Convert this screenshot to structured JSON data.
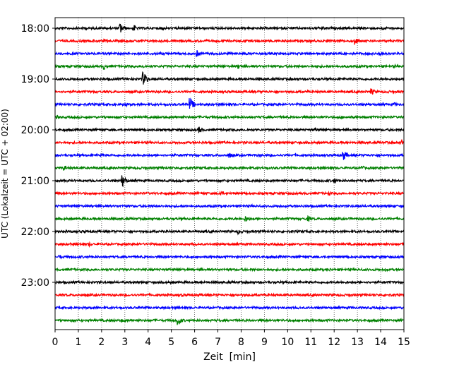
{
  "chart_data": {
    "type": "line",
    "subtype": "seismogram-dayplot",
    "xlabel": "Zeit  [min]",
    "ylabel": "UTC (Lokalzeit = UTC + 02:00)",
    "xlim": [
      0,
      15
    ],
    "x_ticks": [
      "0",
      "1",
      "2",
      "3",
      "4",
      "5",
      "6",
      "7",
      "8",
      "9",
      "10",
      "11",
      "12",
      "13",
      "14",
      "15"
    ],
    "y_ticks": [
      "18:00",
      "19:00",
      "20:00",
      "21:00",
      "22:00",
      "23:00"
    ],
    "grid": "vertical dotted at each minute",
    "trace_interval_min": 15,
    "color_cycle": [
      "#000000",
      "#ff0000",
      "#0000ff",
      "#008000"
    ],
    "traces": [
      {
        "start": "18:00",
        "events": [
          [
            1.3,
            2.5
          ],
          [
            2.8,
            8
          ],
          [
            3.4,
            5
          ],
          [
            4.6,
            3.5
          ],
          [
            11.5,
            2.5
          ],
          [
            14.1,
            2.5
          ]
        ]
      },
      {
        "start": "18:15",
        "events": [
          [
            2.1,
            2.5
          ],
          [
            12.9,
            6
          ]
        ]
      },
      {
        "start": "18:30",
        "events": [
          [
            6.1,
            5
          ],
          [
            14.0,
            4
          ]
        ]
      },
      {
        "start": "18:45",
        "events": [
          [
            2.1,
            5
          ],
          [
            3.8,
            2.5
          ],
          [
            7.9,
            4
          ],
          [
            11.3,
            2.5
          ],
          [
            14.6,
            2.5
          ]
        ]
      },
      {
        "start": "19:00",
        "events": [
          [
            3.8,
            10
          ]
        ]
      },
      {
        "start": "19:15",
        "events": [
          [
            1.7,
            2.5
          ],
          [
            10.9,
            2.5
          ],
          [
            13.6,
            5
          ]
        ]
      },
      {
        "start": "19:30",
        "events": [
          [
            1.5,
            2.5
          ],
          [
            3.0,
            4
          ],
          [
            5.8,
            10
          ],
          [
            14.6,
            3
          ]
        ]
      },
      {
        "start": "19:45",
        "events": [
          [
            0.1,
            3
          ],
          [
            12.3,
            2.5
          ]
        ]
      },
      {
        "start": "20:00",
        "events": [
          [
            6.2,
            5
          ],
          [
            11.2,
            3
          ]
        ]
      },
      {
        "start": "20:15",
        "events": [
          [
            14.9,
            5
          ]
        ]
      },
      {
        "start": "20:30",
        "events": [
          [
            2.0,
            3
          ],
          [
            7.5,
            4
          ],
          [
            8.8,
            2.5
          ],
          [
            12.4,
            8
          ]
        ]
      },
      {
        "start": "20:45",
        "events": [
          [
            0.4,
            4
          ],
          [
            13.2,
            3.5
          ]
        ]
      },
      {
        "start": "21:00",
        "events": [
          [
            2.9,
            9
          ],
          [
            12.0,
            5
          ]
        ]
      },
      {
        "start": "21:15",
        "events": [
          [
            7.1,
            5
          ],
          [
            11.8,
            3
          ]
        ]
      },
      {
        "start": "21:30",
        "events": []
      },
      {
        "start": "21:45",
        "events": [
          [
            8.2,
            5
          ],
          [
            10.9,
            4
          ]
        ]
      },
      {
        "start": "22:00",
        "events": [
          [
            1.3,
            2
          ],
          [
            7.9,
            4
          ]
        ]
      },
      {
        "start": "22:15",
        "events": [
          [
            1.5,
            3
          ],
          [
            5.9,
            2.5
          ]
        ]
      },
      {
        "start": "22:30",
        "events": [
          [
            0.2,
            3
          ],
          [
            14.0,
            2.5
          ]
        ]
      },
      {
        "start": "22:45",
        "events": [
          [
            11.8,
            2.5
          ],
          [
            14.2,
            2.5
          ]
        ]
      },
      {
        "start": "23:00",
        "events": [
          [
            5.0,
            2.5
          ]
        ]
      },
      {
        "start": "23:15",
        "events": [
          [
            5.5,
            2.5
          ]
        ]
      },
      {
        "start": "23:30",
        "events": [
          [
            1.6,
            3
          ]
        ]
      },
      {
        "start": "23:45",
        "events": [
          [
            2.9,
            3
          ],
          [
            5.3,
            7
          ]
        ]
      }
    ]
  }
}
